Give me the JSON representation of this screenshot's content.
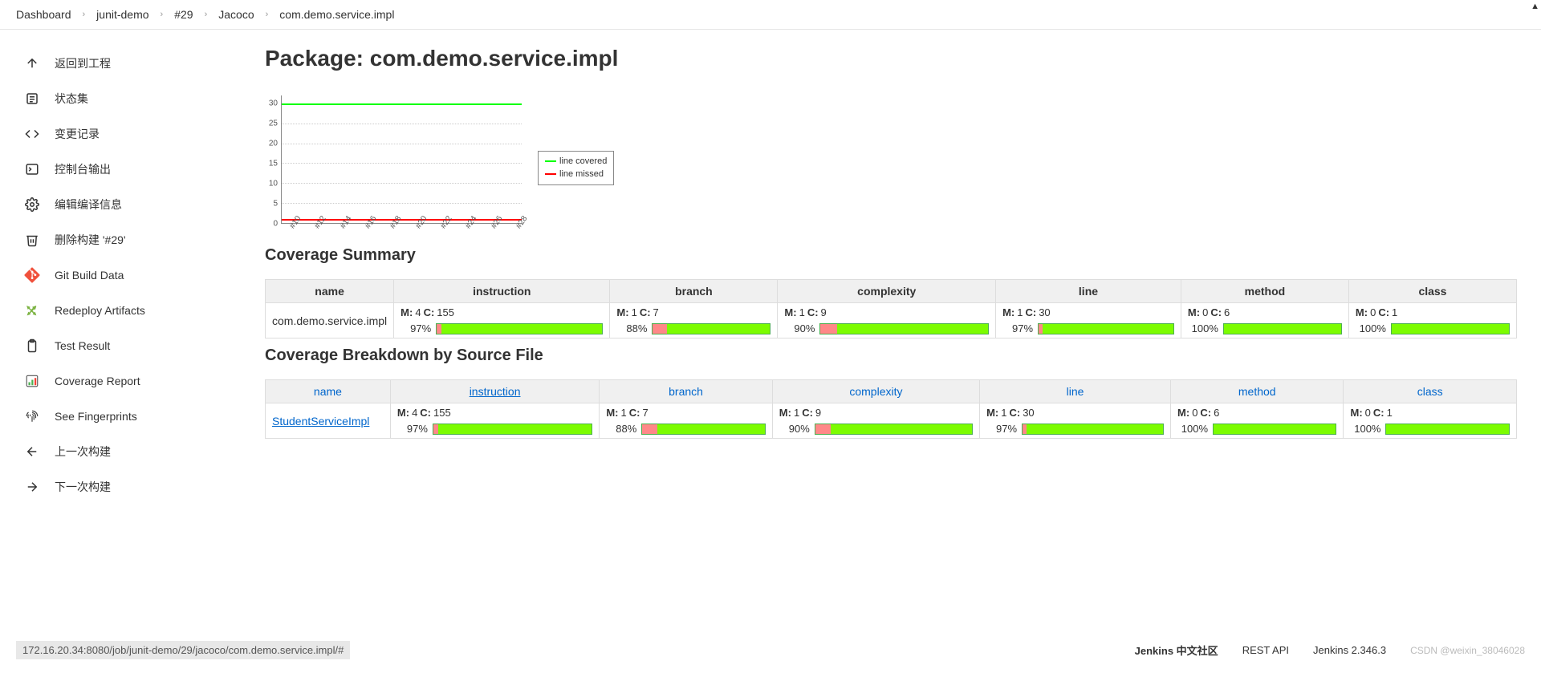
{
  "breadcrumb": [
    {
      "label": "Dashboard"
    },
    {
      "label": "junit-demo"
    },
    {
      "label": "#29"
    },
    {
      "label": "Jacoco"
    },
    {
      "label": "com.demo.service.impl"
    }
  ],
  "sidebar": {
    "items": [
      {
        "icon": "arrow-up",
        "label": "返回到工程"
      },
      {
        "icon": "list",
        "label": "状态集"
      },
      {
        "icon": "code",
        "label": "变更记录"
      },
      {
        "icon": "terminal",
        "label": "控制台输出"
      },
      {
        "icon": "gear",
        "label": "编辑编译信息"
      },
      {
        "icon": "trash",
        "label": "删除构建 '#29'"
      },
      {
        "icon": "git",
        "label": "Git Build Data"
      },
      {
        "icon": "redeploy",
        "label": "Redeploy Artifacts"
      },
      {
        "icon": "clipboard",
        "label": "Test Result"
      },
      {
        "icon": "coverage",
        "label": "Coverage Report"
      },
      {
        "icon": "fingerprint",
        "label": "See Fingerprints"
      },
      {
        "icon": "arrow-left",
        "label": "上一次构建"
      },
      {
        "icon": "arrow-right",
        "label": "下一次构建"
      }
    ]
  },
  "page_title": "Package: com.demo.service.impl",
  "chart": {
    "y_ticks": [
      0,
      5,
      10,
      15,
      20,
      25,
      30
    ],
    "y_max": 32,
    "x_ticks": [
      "#10",
      "#12",
      "#14",
      "#16",
      "#18",
      "#20",
      "#22",
      "#24",
      "#26",
      "#28"
    ],
    "series": [
      {
        "label": "line covered",
        "color": "#00ff00",
        "value": 30
      },
      {
        "label": "line missed",
        "color": "#ff0000",
        "value": 1
      }
    ],
    "grid_color": "#cccccc"
  },
  "summary_title": "Coverage Summary",
  "breakdown_title": "Coverage Breakdown by Source File",
  "columns": [
    "name",
    "instruction",
    "branch",
    "complexity",
    "line",
    "method",
    "class"
  ],
  "summary_row": {
    "name": "com.demo.service.impl",
    "cells": [
      {
        "m": 4,
        "c": 155,
        "pct": 97
      },
      {
        "m": 1,
        "c": 7,
        "pct": 88
      },
      {
        "m": 1,
        "c": 9,
        "pct": 90
      },
      {
        "m": 1,
        "c": 30,
        "pct": 97
      },
      {
        "m": 0,
        "c": 6,
        "pct": 100
      },
      {
        "m": 0,
        "c": 1,
        "pct": 100
      }
    ]
  },
  "breakdown_rows": [
    {
      "name": "StudentServiceImpl",
      "cells": [
        {
          "m": 4,
          "c": 155,
          "pct": 97
        },
        {
          "m": 1,
          "c": 7,
          "pct": 88
        },
        {
          "m": 1,
          "c": 9,
          "pct": 90
        },
        {
          "m": 1,
          "c": 30,
          "pct": 97
        },
        {
          "m": 0,
          "c": 6,
          "pct": 100
        },
        {
          "m": 0,
          "c": 1,
          "pct": 100
        }
      ]
    }
  ],
  "colors": {
    "bar_covered": "#7cfc00",
    "bar_missed": "#ff8888",
    "link": "#0066cc"
  },
  "footer": {
    "url": "172.16.20.34:8080/job/junit-demo/29/jacoco/com.demo.service.impl/#",
    "links": [
      "Jenkins 中文社区",
      "REST API",
      "Jenkins 2.346.3"
    ],
    "watermark": "CSDN @weixin_38046028"
  }
}
